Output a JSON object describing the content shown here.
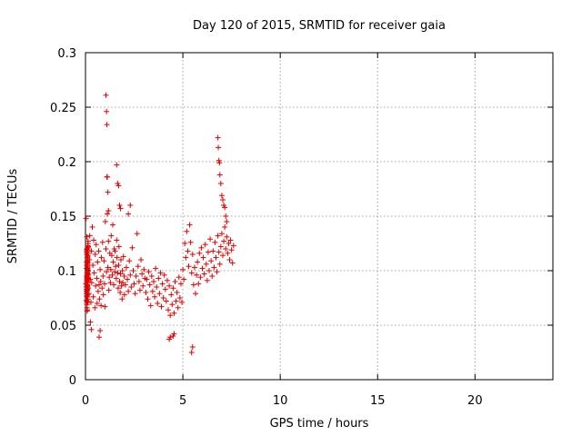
{
  "chart_data": {
    "type": "scatter",
    "title": "Day 120 of 2015, SRMTID for receiver gaia",
    "xlabel": "GPS time / hours",
    "ylabel": "SRMTID / TECUs",
    "xlim": [
      0,
      24
    ],
    "ylim": [
      0,
      0.3
    ],
    "xticks": [
      0,
      5,
      10,
      15,
      20
    ],
    "xtick_labels": [
      "0",
      "5",
      "10",
      "15",
      "20"
    ],
    "yticks": [
      0,
      0.05,
      0.1,
      0.15,
      0.2,
      0.25,
      0.3
    ],
    "ytick_labels": [
      "0",
      "0.05",
      "0.1",
      "0.15",
      "0.2",
      "0.25",
      "0.3"
    ],
    "grid": true,
    "marker": "+",
    "color": "#e00000",
    "series": [
      {
        "name": "SRMTID",
        "x": [
          0.02,
          0.05,
          0.08,
          0.1,
          0.12,
          0.15,
          0.18,
          0.2,
          0.22,
          0.25,
          0.28,
          0.3,
          0.32,
          0.35,
          0.38,
          0.4,
          0.42,
          0.45,
          0.48,
          0.5,
          0.52,
          0.55,
          0.58,
          0.6,
          0.62,
          0.65,
          0.68,
          0.7,
          0.72,
          0.75,
          0.78,
          0.8,
          0.82,
          0.85,
          0.88,
          0.9,
          0.92,
          0.95,
          0.98,
          1.0,
          1.02,
          1.05,
          1.08,
          1.1,
          1.12,
          1.15,
          1.18,
          1.2,
          1.22,
          1.25,
          1.28,
          1.3,
          1.32,
          1.35,
          1.38,
          1.4,
          1.42,
          1.45,
          1.48,
          1.5,
          1.52,
          1.55,
          1.58,
          1.6,
          1.62,
          1.65,
          1.68,
          1.7,
          1.72,
          1.75,
          1.78,
          1.8,
          1.82,
          1.85,
          1.88,
          1.9,
          1.92,
          1.95,
          1.98,
          2.0,
          2.05,
          2.1,
          2.15,
          2.2,
          2.25,
          2.3,
          2.35,
          2.4,
          2.45,
          2.5,
          2.55,
          2.6,
          2.65,
          2.7,
          2.75,
          2.8,
          2.85,
          2.9,
          2.95,
          3.0,
          3.05,
          3.1,
          3.15,
          3.2,
          3.25,
          3.3,
          3.35,
          3.4,
          3.45,
          3.5,
          3.55,
          3.6,
          3.65,
          3.7,
          3.75,
          3.8,
          3.85,
          3.9,
          3.95,
          4.0,
          4.05,
          4.1,
          4.15,
          4.2,
          4.25,
          4.3,
          4.35,
          4.4,
          4.45,
          4.5,
          4.55,
          4.6,
          4.65,
          4.7,
          4.75,
          4.8,
          4.85,
          4.9,
          4.95,
          5.0,
          5.05,
          5.1,
          5.15,
          5.2,
          5.25,
          5.3,
          5.35,
          5.4,
          5.45,
          5.5,
          5.55,
          5.6,
          5.65,
          5.7,
          5.75,
          5.8,
          5.85,
          5.9,
          5.95,
          6.0,
          6.05,
          6.1,
          6.15,
          6.2,
          6.25,
          6.3,
          6.35,
          6.4,
          6.45,
          6.5,
          6.55,
          6.6,
          6.65,
          6.7,
          6.75,
          6.8,
          6.85,
          6.9,
          6.95,
          7.0,
          7.05,
          7.1,
          7.15,
          7.2,
          7.25,
          7.3,
          7.35,
          7.4,
          7.45,
          7.5,
          7.55,
          7.6,
          0.03,
          0.07,
          0.11,
          0.14,
          0.04,
          0.09,
          0.12,
          0.06,
          0.15,
          0.08,
          0.1,
          0.05,
          0.13,
          0.07,
          0.09,
          0.12,
          0.06,
          0.14,
          0.1,
          0.08,
          0.11,
          0.05,
          0.07,
          0.13,
          0.09,
          0.06,
          0.1,
          0.08,
          0.12,
          0.07,
          0.05,
          0.11,
          0.09,
          0.06,
          0.08,
          0.1,
          0.07,
          0.12,
          0.09,
          0.11,
          0.08,
          0.1,
          0.06,
          0.13,
          0.09,
          0.07,
          0.11,
          0.08,
          0.1,
          0.12,
          0.09,
          0.07,
          0.11,
          0.08,
          0.1,
          0.09,
          0.12,
          0.08,
          0.1,
          0.07,
          0.11,
          0.09,
          0.08,
          0.1,
          0.12,
          0.09,
          0.11,
          0.08,
          0.1,
          0.07,
          0.09,
          0.11,
          0.08,
          0.1,
          0.09,
          0.12,
          0.08,
          0.1,
          0.09,
          0.11,
          1.05,
          1.08,
          1.1,
          1.12,
          1.15,
          1.18,
          1.6,
          1.65,
          1.7,
          1.75,
          1.8,
          6.8,
          6.82,
          6.85,
          6.88,
          6.9,
          6.95,
          7.0,
          7.05,
          7.1,
          7.15,
          7.2,
          7.25,
          4.3,
          4.35,
          4.5,
          4.55,
          5.5,
          5.45,
          0.3,
          0.25,
          0.7,
          0.75,
          2.3,
          2.2
        ],
        "y": [
          0.088,
          0.102,
          0.094,
          0.085,
          0.121,
          0.096,
          0.079,
          0.11,
          0.132,
          0.092,
          0.071,
          0.118,
          0.089,
          0.14,
          0.105,
          0.076,
          0.128,
          0.098,
          0.066,
          0.115,
          0.086,
          0.124,
          0.093,
          0.07,
          0.108,
          0.081,
          0.118,
          0.087,
          0.074,
          0.101,
          0.09,
          0.068,
          0.112,
          0.084,
          0.126,
          0.095,
          0.078,
          0.109,
          0.088,
          0.067,
          0.145,
          0.12,
          0.099,
          0.186,
          0.152,
          0.103,
          0.127,
          0.082,
          0.094,
          0.116,
          0.089,
          0.101,
          0.132,
          0.114,
          0.096,
          0.142,
          0.108,
          0.087,
          0.12,
          0.099,
          0.118,
          0.104,
          0.093,
          0.128,
          0.112,
          0.098,
          0.084,
          0.105,
          0.122,
          0.09,
          0.08,
          0.097,
          0.11,
          0.086,
          0.074,
          0.1,
          0.089,
          0.113,
          0.095,
          0.078,
          0.087,
          0.103,
          0.092,
          0.081,
          0.109,
          0.096,
          0.085,
          0.121,
          0.1,
          0.088,
          0.079,
          0.095,
          0.134,
          0.104,
          0.09,
          0.082,
          0.11,
          0.097,
          0.086,
          0.101,
          0.093,
          0.08,
          0.092,
          0.074,
          0.099,
          0.087,
          0.068,
          0.095,
          0.081,
          0.09,
          0.076,
          0.102,
          0.085,
          0.07,
          0.093,
          0.079,
          0.098,
          0.067,
          0.088,
          0.075,
          0.096,
          0.083,
          0.072,
          0.091,
          0.064,
          0.086,
          0.059,
          0.078,
          0.069,
          0.084,
          0.061,
          0.09,
          0.072,
          0.08,
          0.066,
          0.094,
          0.075,
          0.088,
          0.071,
          0.101,
          0.092,
          0.125,
          0.112,
          0.136,
          0.118,
          0.104,
          0.142,
          0.126,
          0.098,
          0.115,
          0.087,
          0.103,
          0.079,
          0.096,
          0.108,
          0.088,
          0.116,
          0.094,
          0.121,
          0.102,
          0.112,
          0.097,
          0.124,
          0.106,
          0.091,
          0.117,
          0.1,
          0.129,
          0.109,
          0.095,
          0.118,
          0.103,
          0.126,
          0.112,
          0.099,
          0.132,
          0.117,
          0.106,
          0.122,
          0.134,
          0.114,
          0.127,
          0.14,
          0.12,
          0.131,
          0.116,
          0.125,
          0.11,
          0.128,
          0.119,
          0.107,
          0.123,
          0.148,
          0.131,
          0.097,
          0.122,
          0.085,
          0.108,
          0.074,
          0.115,
          0.092,
          0.066,
          0.101,
          0.079,
          0.127,
          0.09,
          0.112,
          0.071,
          0.119,
          0.084,
          0.106,
          0.063,
          0.097,
          0.081,
          0.12,
          0.093,
          0.076,
          0.108,
          0.086,
          0.069,
          0.114,
          0.095,
          0.073,
          0.102,
          0.083,
          0.117,
          0.091,
          0.064,
          0.105,
          0.078,
          0.098,
          0.087,
          0.072,
          0.109,
          0.083,
          0.125,
          0.096,
          0.079,
          0.113,
          0.089,
          0.102,
          0.121,
          0.094,
          0.076,
          0.108,
          0.087,
          0.099,
          0.082,
          0.116,
          0.093,
          0.105,
          0.077,
          0.111,
          0.096,
          0.085,
          0.103,
          0.119,
          0.092,
          0.107,
          0.081,
          0.098,
          0.071,
          0.09,
          0.114,
          0.083,
          0.101,
          0.094,
          0.123,
          0.086,
          0.104,
          0.092,
          0.11,
          0.261,
          0.246,
          0.234,
          0.186,
          0.172,
          0.155,
          0.197,
          0.18,
          0.178,
          0.16,
          0.157,
          0.222,
          0.213,
          0.201,
          0.199,
          0.188,
          0.18,
          0.169,
          0.165,
          0.16,
          0.158,
          0.15,
          0.145,
          0.037,
          0.039,
          0.04,
          0.042,
          0.03,
          0.025,
          0.046,
          0.053,
          0.039,
          0.045,
          0.16,
          0.152
        ]
      }
    ]
  }
}
